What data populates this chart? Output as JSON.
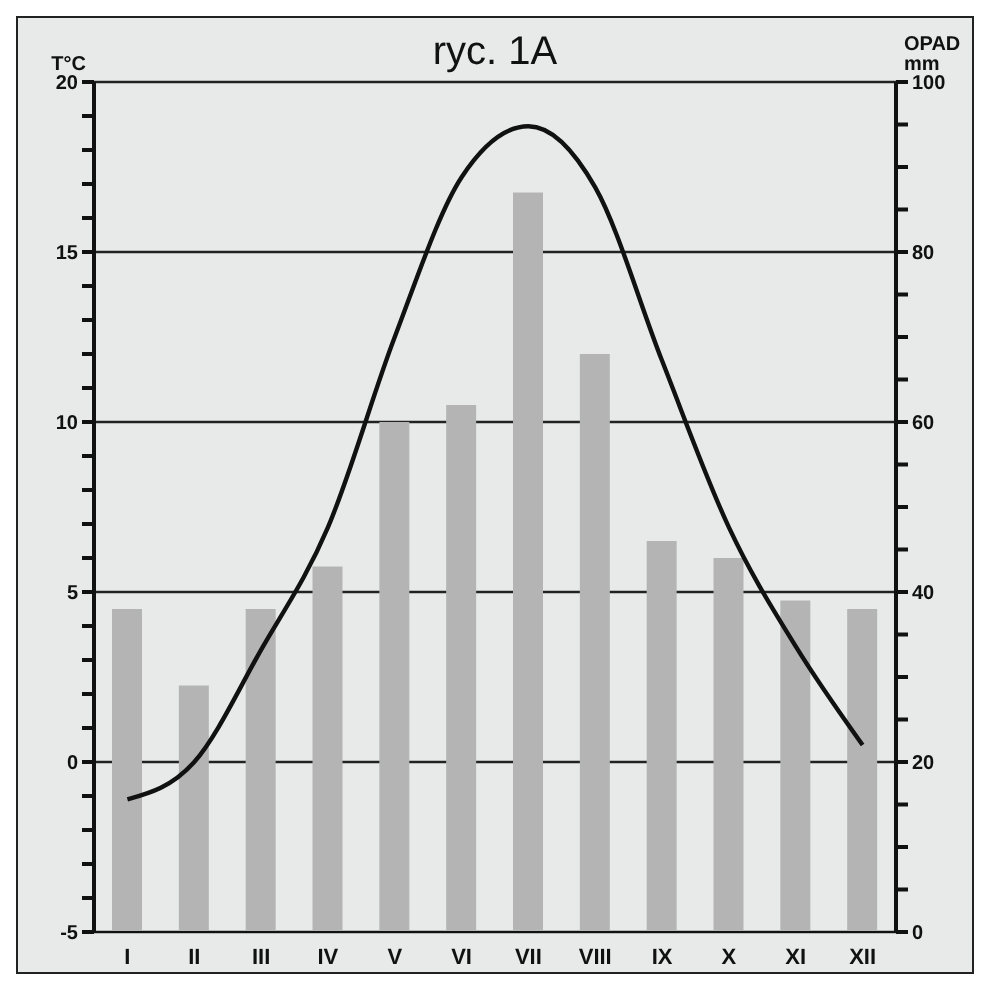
{
  "chart_data": {
    "type": "bar",
    "title": "ryc. 1A",
    "ylabel": "T°C",
    "y2label": "OPAD mm",
    "categories": [
      "I",
      "II",
      "III",
      "IV",
      "V",
      "VI",
      "VII",
      "VIII",
      "IX",
      "X",
      "XI",
      "XII"
    ],
    "series": [
      {
        "axis": "y2",
        "color": "#b4b4b4",
        "values": [
          38,
          29,
          38,
          43,
          60,
          62,
          87,
          68,
          46,
          44,
          39,
          38
        ]
      },
      {
        "type": "line",
        "color": "#111111",
        "values": [
          -1.1,
          0.0,
          3.3,
          6.9,
          12.5,
          17.2,
          18.7,
          16.9,
          11.8,
          6.9,
          3.4,
          0.5
        ]
      }
    ],
    "ylim": [
      -5,
      20
    ],
    "yticks": [
      -5,
      {
        "value": -4,
        "label": null
      },
      {
        "value": -3,
        "label": null
      },
      {
        "value": -2,
        "label": null
      },
      {
        "value": -1,
        "label": null
      },
      0,
      {
        "value": 1,
        "label": null
      },
      {
        "value": 2,
        "label": null
      },
      {
        "value": 3,
        "label": null
      },
      {
        "value": 4,
        "label": null
      },
      5,
      {
        "value": 6,
        "label": null
      },
      {
        "value": 7,
        "label": null
      },
      {
        "value": 8,
        "label": null
      },
      {
        "value": 9,
        "label": null
      },
      10,
      {
        "value": 11,
        "label": null
      },
      {
        "value": 12,
        "label": null
      },
      {
        "value": 13,
        "label": null
      },
      {
        "value": 14,
        "label": null
      },
      15,
      {
        "value": 16,
        "label": null
      },
      {
        "value": 17,
        "label": null
      },
      {
        "value": 18,
        "label": null
      },
      {
        "value": 19,
        "label": null
      },
      20
    ],
    "y2lim": [
      0,
      100
    ],
    "y2ticks": [
      0,
      {
        "value": 5,
        "label": null
      },
      {
        "value": 10,
        "label": null
      },
      {
        "value": 15,
        "label": null
      },
      20,
      {
        "value": 25,
        "label": null
      },
      {
        "value": 30,
        "label": null
      },
      {
        "value": 35,
        "label": null
      },
      40,
      {
        "value": 45,
        "label": null
      },
      {
        "value": 50,
        "label": null
      },
      {
        "value": 55,
        "label": null
      },
      60,
      {
        "value": 65,
        "label": null
      },
      {
        "value": 70,
        "label": null
      },
      {
        "value": 75,
        "label": null
      },
      80,
      {
        "value": 85,
        "label": null
      },
      {
        "value": 90,
        "label": null
      },
      {
        "value": 95,
        "label": null
      },
      100
    ],
    "grid": "y",
    "legend": false,
    "marker": "none",
    "line_style": "solid"
  }
}
